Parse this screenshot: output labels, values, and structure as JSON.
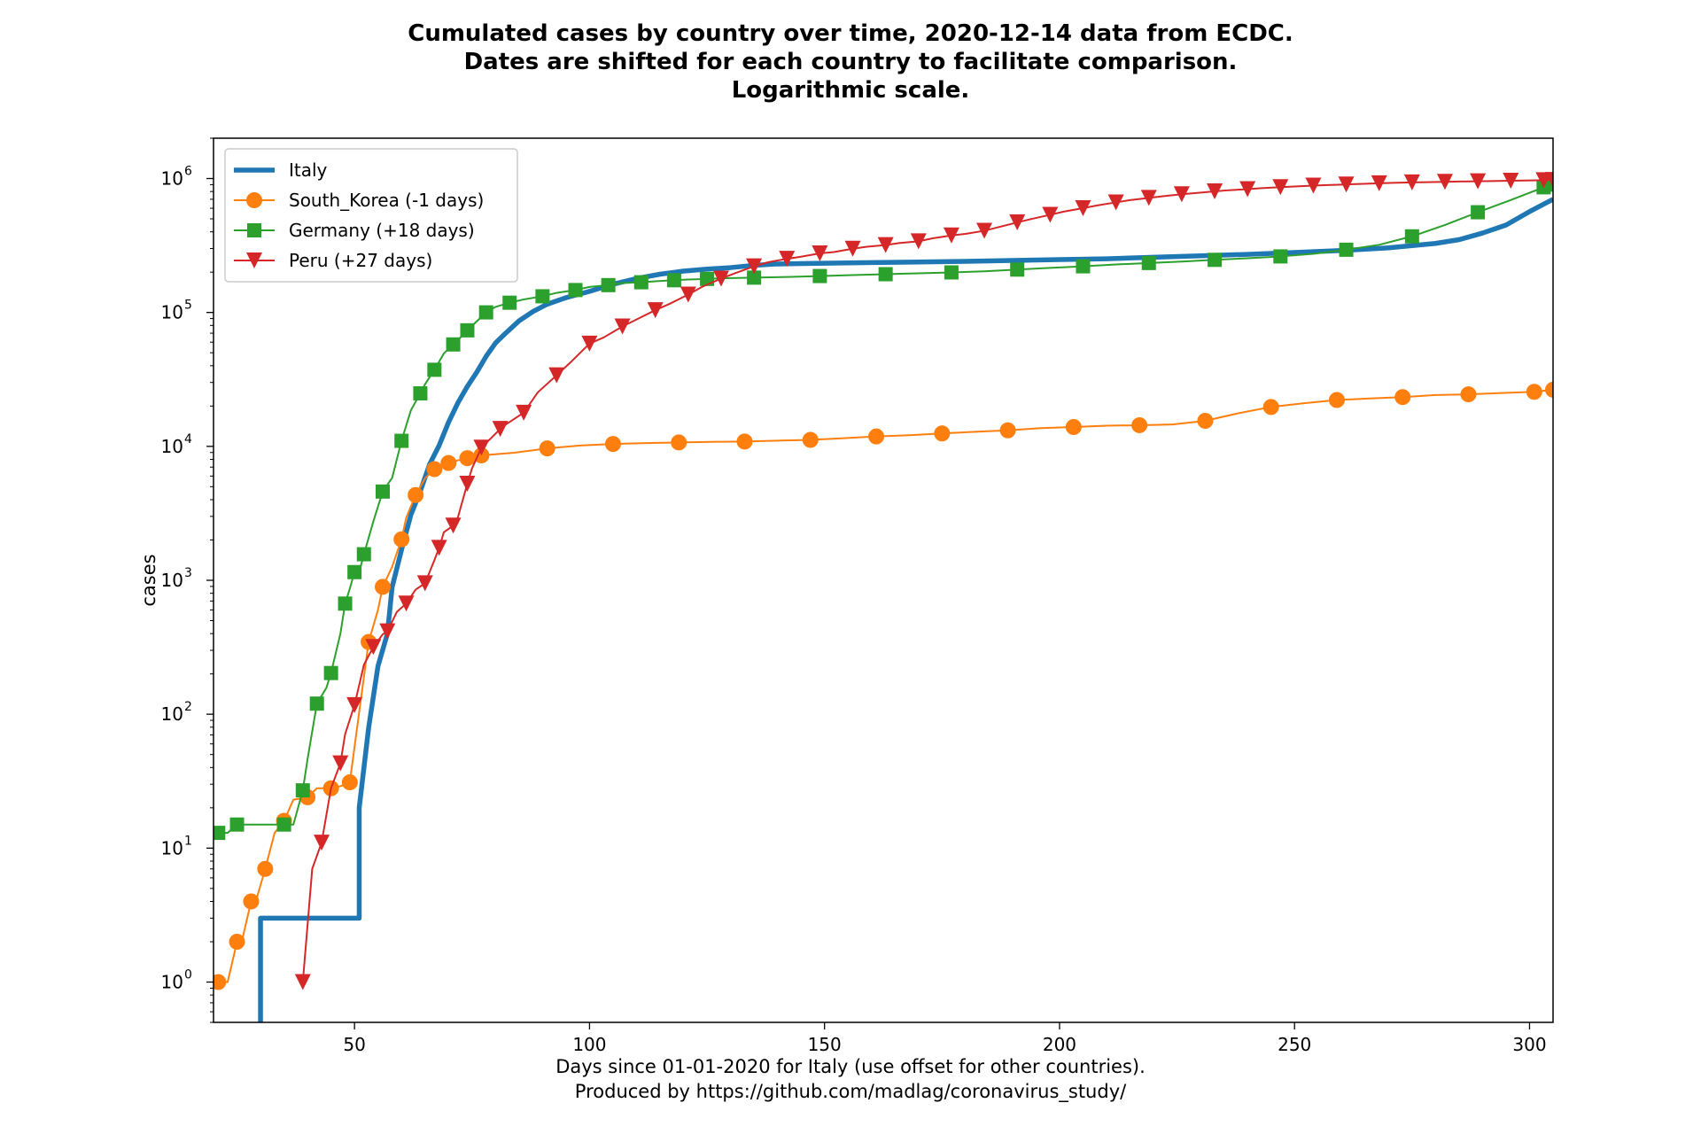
{
  "chart_data": {
    "type": "line",
    "title_lines": [
      "Cumulated cases by country over time, 2020-12-14 data from ECDC.",
      "Dates are shifted for each country to facilitate comparison.",
      "Logarithmic scale."
    ],
    "xlabel_lines": [
      "Days since 01-01-2020 for Italy (use offset for other countries).",
      "Produced by https://github.com/madlag/coronavirus_study/"
    ],
    "ylabel": "cases",
    "xlim": [
      20,
      305
    ],
    "ylim": [
      0.5,
      2000000
    ],
    "yscale": "log",
    "xticks": [
      50,
      100,
      150,
      200,
      250,
      300
    ],
    "yticks": [
      {
        "value": 1,
        "base": "10",
        "exp": "0"
      },
      {
        "value": 10,
        "base": "10",
        "exp": "1"
      },
      {
        "value": 100,
        "base": "10",
        "exp": "2"
      },
      {
        "value": 1000,
        "base": "10",
        "exp": "3"
      },
      {
        "value": 10000,
        "base": "10",
        "exp": "4"
      },
      {
        "value": 100000,
        "base": "10",
        "exp": "5"
      },
      {
        "value": 1000000,
        "base": "10",
        "exp": "6"
      }
    ],
    "grid": false,
    "legend_position": "top-left",
    "series": [
      {
        "name": "Italy",
        "color": "#1f77b4",
        "marker": "none",
        "points": [
          [
            30,
            0.3
          ],
          [
            30,
            3
          ],
          [
            51,
            3
          ],
          [
            51,
            20
          ],
          [
            53,
            79
          ],
          [
            55,
            229
          ],
          [
            57,
            400
          ],
          [
            58,
            888
          ],
          [
            60,
            1689
          ],
          [
            62,
            3089
          ],
          [
            64,
            4636
          ],
          [
            66,
            7375
          ],
          [
            68,
            10149
          ],
          [
            70,
            15113
          ],
          [
            72,
            21157
          ],
          [
            74,
            27980
          ],
          [
            76,
            35713
          ],
          [
            78,
            47021
          ],
          [
            80,
            59138
          ],
          [
            82,
            69176
          ],
          [
            85,
            86498
          ],
          [
            88,
            101739
          ],
          [
            91,
            115242
          ],
          [
            95,
            128948
          ],
          [
            100,
            143626
          ],
          [
            105,
            162488
          ],
          [
            110,
            178972
          ],
          [
            115,
            192994
          ],
          [
            120,
            203591
          ],
          [
            125,
            210717
          ],
          [
            130,
            216129
          ],
          [
            135,
            224760
          ],
          [
            140,
            230158
          ],
          [
            150,
            233197
          ],
          [
            160,
            235561
          ],
          [
            170,
            238011
          ],
          [
            180,
            240578
          ],
          [
            190,
            244216
          ],
          [
            200,
            248229
          ],
          [
            210,
            251713
          ],
          [
            220,
            258136
          ],
          [
            230,
            264659
          ],
          [
            240,
            271515
          ],
          [
            250,
            280153
          ],
          [
            260,
            289990
          ],
          [
            270,
            303462
          ],
          [
            280,
            327586
          ],
          [
            285,
            349494
          ],
          [
            290,
            391611
          ],
          [
            295,
            449648
          ],
          [
            300,
            566000
          ],
          [
            305,
            700000
          ]
        ]
      },
      {
        "name": "South_Korea (-1 days)",
        "color": "#ff7f0e",
        "marker": "circle",
        "points": [
          [
            21,
            1
          ],
          [
            23,
            1
          ],
          [
            25,
            2
          ],
          [
            26,
            2
          ],
          [
            28,
            4
          ],
          [
            29,
            4
          ],
          [
            31,
            7
          ],
          [
            33,
            13
          ],
          [
            35,
            16
          ],
          [
            37,
            23
          ],
          [
            40,
            24
          ],
          [
            42,
            28
          ],
          [
            45,
            28
          ],
          [
            47,
            29
          ],
          [
            49,
            31
          ],
          [
            51,
            104
          ],
          [
            53,
            346
          ],
          [
            55,
            602
          ],
          [
            56,
            893
          ],
          [
            58,
            1261
          ],
          [
            60,
            2022
          ],
          [
            61,
            2931
          ],
          [
            63,
            4335
          ],
          [
            65,
            5766
          ],
          [
            67,
            6767
          ],
          [
            69,
            7382
          ],
          [
            70,
            7513
          ],
          [
            72,
            7869
          ],
          [
            74,
            8162
          ],
          [
            76,
            8413
          ],
          [
            77,
            8565
          ],
          [
            84,
            8961
          ],
          [
            91,
            9661
          ],
          [
            98,
            10156
          ],
          [
            105,
            10423
          ],
          [
            112,
            10591
          ],
          [
            119,
            10694
          ],
          [
            126,
            10801
          ],
          [
            133,
            10874
          ],
          [
            140,
            11037
          ],
          [
            147,
            11190
          ],
          [
            154,
            11503
          ],
          [
            161,
            11852
          ],
          [
            168,
            12121
          ],
          [
            175,
            12484
          ],
          [
            182,
            12850
          ],
          [
            189,
            13181
          ],
          [
            196,
            13672
          ],
          [
            203,
            13938
          ],
          [
            210,
            14269
          ],
          [
            217,
            14389
          ],
          [
            224,
            14562
          ],
          [
            231,
            15515
          ],
          [
            238,
            17665
          ],
          [
            245,
            19699
          ],
          [
            252,
            21010
          ],
          [
            259,
            22176
          ],
          [
            266,
            22783
          ],
          [
            273,
            23341
          ],
          [
            280,
            24164
          ],
          [
            287,
            24476
          ],
          [
            294,
            25035
          ],
          [
            301,
            25543
          ],
          [
            305,
            26500
          ]
        ]
      },
      {
        "name": "Germany (+18 days)",
        "color": "#2ca02c",
        "marker": "square",
        "points": [
          [
            21,
            13
          ],
          [
            23,
            13
          ],
          [
            25,
            15
          ],
          [
            30,
            15
          ],
          [
            35,
            15
          ],
          [
            37,
            15
          ],
          [
            39,
            27
          ],
          [
            40,
            46
          ],
          [
            42,
            120
          ],
          [
            44,
            157
          ],
          [
            45,
            203
          ],
          [
            47,
            400
          ],
          [
            48,
            670
          ],
          [
            49,
            867
          ],
          [
            50,
            1151
          ],
          [
            51,
            1151
          ],
          [
            52,
            1565
          ],
          [
            54,
            2745
          ],
          [
            56,
            4599
          ],
          [
            58,
            5813
          ],
          [
            60,
            10999
          ],
          [
            62,
            18610
          ],
          [
            64,
            24873
          ],
          [
            65,
            29056
          ],
          [
            67,
            37323
          ],
          [
            69,
            49344
          ],
          [
            71,
            57695
          ],
          [
            72,
            62095
          ],
          [
            74,
            73522
          ],
          [
            76,
            85778
          ],
          [
            78,
            100123
          ],
          [
            80,
            110000
          ],
          [
            83,
            118235
          ],
          [
            86,
            125098
          ],
          [
            90,
            132000
          ],
          [
            93,
            140000
          ],
          [
            97,
            147000
          ],
          [
            100,
            155000
          ],
          [
            104,
            160000
          ],
          [
            107,
            165745
          ],
          [
            111,
            168000
          ],
          [
            114,
            171000
          ],
          [
            118,
            174000
          ],
          [
            121,
            176000
          ],
          [
            125,
            178000
          ],
          [
            128,
            180000
          ],
          [
            135,
            182000
          ],
          [
            142,
            184000
          ],
          [
            149,
            187000
          ],
          [
            156,
            190000
          ],
          [
            163,
            193000
          ],
          [
            170,
            196000
          ],
          [
            177,
            199000
          ],
          [
            184,
            203000
          ],
          [
            191,
            209000
          ],
          [
            198,
            215000
          ],
          [
            205,
            221000
          ],
          [
            212,
            228000
          ],
          [
            219,
            234000
          ],
          [
            226,
            240000
          ],
          [
            233,
            247000
          ],
          [
            240,
            254000
          ],
          [
            247,
            262000
          ],
          [
            254,
            274000
          ],
          [
            261,
            294000
          ],
          [
            268,
            320000
          ],
          [
            275,
            370000
          ],
          [
            282,
            450000
          ],
          [
            289,
            560000
          ],
          [
            296,
            690000
          ],
          [
            303,
            860000
          ],
          [
            305,
            900000
          ]
        ]
      },
      {
        "name": "Peru (+27 days)",
        "color": "#d62728",
        "marker": "triangle-down",
        "points": [
          [
            39,
            1
          ],
          [
            41,
            7
          ],
          [
            43,
            11
          ],
          [
            45,
            28
          ],
          [
            47,
            43
          ],
          [
            48,
            71
          ],
          [
            50,
            117
          ],
          [
            52,
            234
          ],
          [
            54,
            318
          ],
          [
            56,
            395
          ],
          [
            57,
            416
          ],
          [
            59,
            580
          ],
          [
            61,
            671
          ],
          [
            63,
            852
          ],
          [
            65,
            950
          ],
          [
            67,
            1414
          ],
          [
            68,
            1746
          ],
          [
            69,
            2281
          ],
          [
            71,
            2561
          ],
          [
            72,
            2954
          ],
          [
            74,
            5256
          ],
          [
            75,
            6848
          ],
          [
            77,
            9784
          ],
          [
            79,
            11475
          ],
          [
            81,
            13489
          ],
          [
            82,
            14420
          ],
          [
            86,
            17837
          ],
          [
            89,
            25331
          ],
          [
            93,
            33931
          ],
          [
            96,
            42534
          ],
          [
            100,
            58526
          ],
          [
            103,
            65015
          ],
          [
            107,
            78576
          ],
          [
            110,
            88541
          ],
          [
            114,
            104020
          ],
          [
            117,
            115754
          ],
          [
            121,
            135905
          ],
          [
            124,
            155671
          ],
          [
            128,
            178914
          ],
          [
            131,
            196515
          ],
          [
            135,
            220749
          ],
          [
            138,
            237156
          ],
          [
            142,
            251338
          ],
          [
            145,
            260810
          ],
          [
            149,
            275989
          ],
          [
            152,
            282365
          ],
          [
            156,
            298930
          ],
          [
            159,
            309278
          ],
          [
            163,
            318549
          ],
          [
            166,
            330123
          ],
          [
            170,
            339967
          ],
          [
            173,
            357681
          ],
          [
            177,
            375961
          ],
          [
            180,
            386037
          ],
          [
            184,
            407492
          ],
          [
            187,
            433100
          ],
          [
            191,
            470157
          ],
          [
            194,
            498555
          ],
          [
            198,
            535946
          ],
          [
            201,
            567059
          ],
          [
            205,
            600438
          ],
          [
            208,
            629961
          ],
          [
            212,
            663437
          ],
          [
            215,
            689977
          ],
          [
            219,
            716670
          ],
          [
            222,
            738020
          ],
          [
            226,
            762865
          ],
          [
            229,
            780000
          ],
          [
            233,
            802000
          ],
          [
            236,
            818000
          ],
          [
            240,
            833000
          ],
          [
            243,
            848000
          ],
          [
            247,
            862000
          ],
          [
            250,
            872000
          ],
          [
            254,
            886000
          ],
          [
            257,
            894000
          ],
          [
            261,
            903000
          ],
          [
            264,
            911000
          ],
          [
            268,
            921000
          ],
          [
            271,
            928000
          ],
          [
            275,
            935000
          ],
          [
            278,
            940000
          ],
          [
            282,
            945000
          ],
          [
            285,
            950000
          ],
          [
            289,
            954000
          ],
          [
            292,
            958000
          ],
          [
            296,
            963000
          ],
          [
            299,
            967000
          ],
          [
            303,
            972000
          ],
          [
            305,
            975000
          ]
        ]
      }
    ]
  }
}
